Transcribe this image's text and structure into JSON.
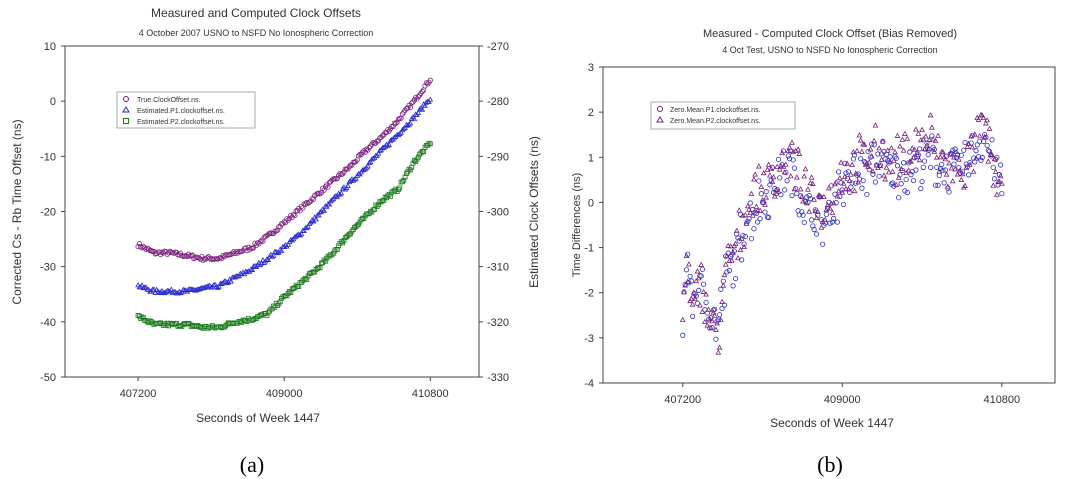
{
  "chart_data": [
    {
      "type": "scatter",
      "title": "Measured and Computed Clock Offsets",
      "subtitle": "4 October 2007  USNO to NSFD  No Ionospheric Correction",
      "xlabel": "Seconds of Week 1447",
      "ylabel": "Corrected Cs - Rb Time Offset (ns)",
      "y2label": "Estimated Clock Offsets (ns)",
      "xlim": [
        406300,
        411400
      ],
      "ylim": [
        -50,
        10
      ],
      "y2lim": [
        -330,
        -270
      ],
      "xticks": [
        407200,
        409000,
        410800
      ],
      "yticks": [
        10,
        0,
        -10,
        -20,
        -30,
        -40,
        -50
      ],
      "y2ticks": [
        -270,
        -280,
        -290,
        -300,
        -310,
        -320,
        -330
      ],
      "grid": false,
      "legend_position": "upper-left",
      "caption": "(a)",
      "series": [
        {
          "name": "True.ClockOffset.ns.",
          "color": "#7b1f7e",
          "marker": "circle",
          "axis": "left",
          "x": [
            407200,
            407400,
            407600,
            407800,
            408000,
            408200,
            408400,
            408600,
            408800,
            409000,
            409200,
            409400,
            409600,
            409800,
            410000,
            410200,
            410400,
            410600,
            410800
          ],
          "y": [
            -26,
            -27.5,
            -27.5,
            -28,
            -28.5,
            -28.5,
            -27.5,
            -26.5,
            -24.5,
            -22,
            -19.5,
            -17,
            -14.5,
            -12,
            -9,
            -6.5,
            -3.5,
            0,
            4
          ]
        },
        {
          "name": "Estimated.P1.clockoffset.ns.",
          "color": "#2a2ad0",
          "marker": "triangle",
          "axis": "right",
          "x": [
            407200,
            407400,
            407600,
            407800,
            408000,
            408200,
            408400,
            408600,
            408800,
            409000,
            409200,
            409400,
            409600,
            409800,
            410000,
            410200,
            410400,
            410600,
            410800
          ],
          "y": [
            -313.5,
            -314.5,
            -314.5,
            -314.5,
            -314,
            -313.5,
            -312,
            -310.5,
            -308.5,
            -306.5,
            -304,
            -301,
            -298,
            -295,
            -292,
            -289,
            -286,
            -283,
            -279.5
          ]
        },
        {
          "name": "Estimated.P2.clockoffset.ns.",
          "color": "#1b7a1b",
          "marker": "square",
          "axis": "right",
          "x": [
            407200,
            407400,
            407600,
            407800,
            408000,
            408200,
            408400,
            408600,
            408800,
            409000,
            409200,
            409400,
            409600,
            409800,
            410000,
            410200,
            410400,
            410600,
            410800
          ],
          "y": [
            -319,
            -320.5,
            -320.5,
            -320.5,
            -321,
            -321,
            -320,
            -319.5,
            -318.5,
            -315.5,
            -313,
            -310.5,
            -307.5,
            -304,
            -301,
            -298,
            -296,
            -291,
            -287.5
          ]
        }
      ]
    },
    {
      "type": "scatter",
      "title": "Measured - Computed Clock Offset (Bias Removed)",
      "subtitle": "4 Oct Test,  USNO to NSFD  No Ionospheric Correction",
      "xlabel": "Seconds of Week 1447",
      "ylabel": "Time Differences (ns)",
      "xlim": [
        406300,
        411400
      ],
      "ylim": [
        -4,
        3
      ],
      "xticks": [
        407200,
        409000,
        410800
      ],
      "yticks": [
        3,
        2,
        1,
        0,
        -1,
        -2,
        -3,
        -4
      ],
      "grid": false,
      "legend_position": "upper-left",
      "caption": "(b)",
      "series": [
        {
          "name": "Zero.Mean.P1.clockoffset.ns.",
          "color": "#2a2ad0",
          "marker": "circle",
          "x": [
            407200,
            407250,
            407300,
            407400,
            407500,
            407600,
            407700,
            407800,
            407900,
            408000,
            408200,
            408400,
            408600,
            408800,
            409000,
            409200,
            409400,
            409600,
            409800,
            410000,
            410200,
            410400,
            410600,
            410800
          ],
          "y": [
            -2.5,
            -1.2,
            -2.2,
            -1.8,
            -2.4,
            -2.7,
            -1.6,
            -1.2,
            -0.4,
            -0.2,
            0.3,
            0.8,
            -0.2,
            -0.5,
            0.4,
            0.6,
            0.9,
            0.7,
            0.8,
            1.0,
            0.6,
            0.9,
            1.5,
            0.3
          ]
        },
        {
          "name": "Zero.Mean.P2.clockoffset.ns.",
          "color": "#7b1f7e",
          "marker": "triangle",
          "x": [
            407200,
            407250,
            407300,
            407400,
            407500,
            407600,
            407700,
            407800,
            407900,
            408000,
            408200,
            408400,
            408600,
            408800,
            409000,
            409200,
            409400,
            409600,
            409800,
            410000,
            410200,
            410400,
            410600,
            410800
          ],
          "y": [
            -2.6,
            -1.0,
            -2.5,
            -1.7,
            -2.6,
            -2.9,
            -1.4,
            -1.0,
            -0.3,
            0.1,
            0.5,
            1.1,
            0.2,
            -0.1,
            0.6,
            0.9,
            1.1,
            0.9,
            1.2,
            1.4,
            0.7,
            0.8,
            1.7,
            0.1
          ]
        }
      ]
    }
  ]
}
